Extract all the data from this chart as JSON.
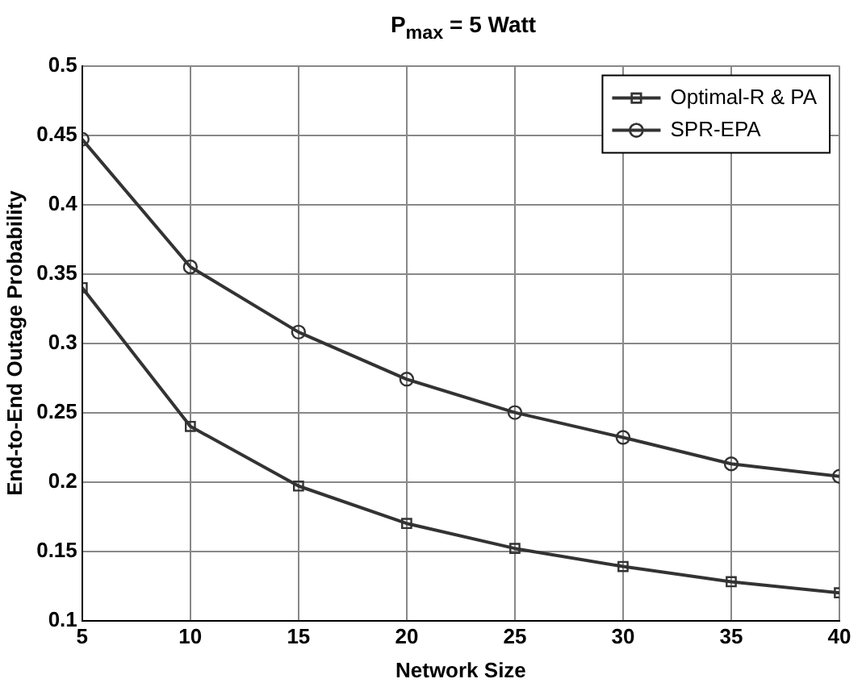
{
  "chart_data": {
    "type": "line",
    "title": "P$_{max}$ = 5 Watt",
    "xlabel": "Network Size",
    "ylabel": "End-to-End Outage Probability",
    "x": [
      5,
      10,
      15,
      20,
      25,
      30,
      35,
      40
    ],
    "series": [
      {
        "name": "Optimal-R & PA",
        "color": "#333333",
        "marker": "square",
        "values": [
          0.34,
          0.24,
          0.197,
          0.17,
          0.152,
          0.139,
          0.128,
          0.12
        ]
      },
      {
        "name": "SPR-EPA",
        "color": "#333333",
        "marker": "circle",
        "values": [
          0.447,
          0.355,
          0.308,
          0.274,
          0.25,
          0.232,
          0.213,
          0.204
        ]
      }
    ],
    "xlim": [
      5,
      40
    ],
    "xticks": [
      5,
      10,
      15,
      20,
      25,
      30,
      35,
      40
    ],
    "ylim": [
      0.1,
      0.5
    ],
    "yticks": [
      0.1,
      0.15,
      0.2,
      0.25,
      0.3,
      0.35,
      0.4,
      0.45,
      0.5
    ],
    "grid": true,
    "legend": "top right",
    "line_style": "solid"
  }
}
